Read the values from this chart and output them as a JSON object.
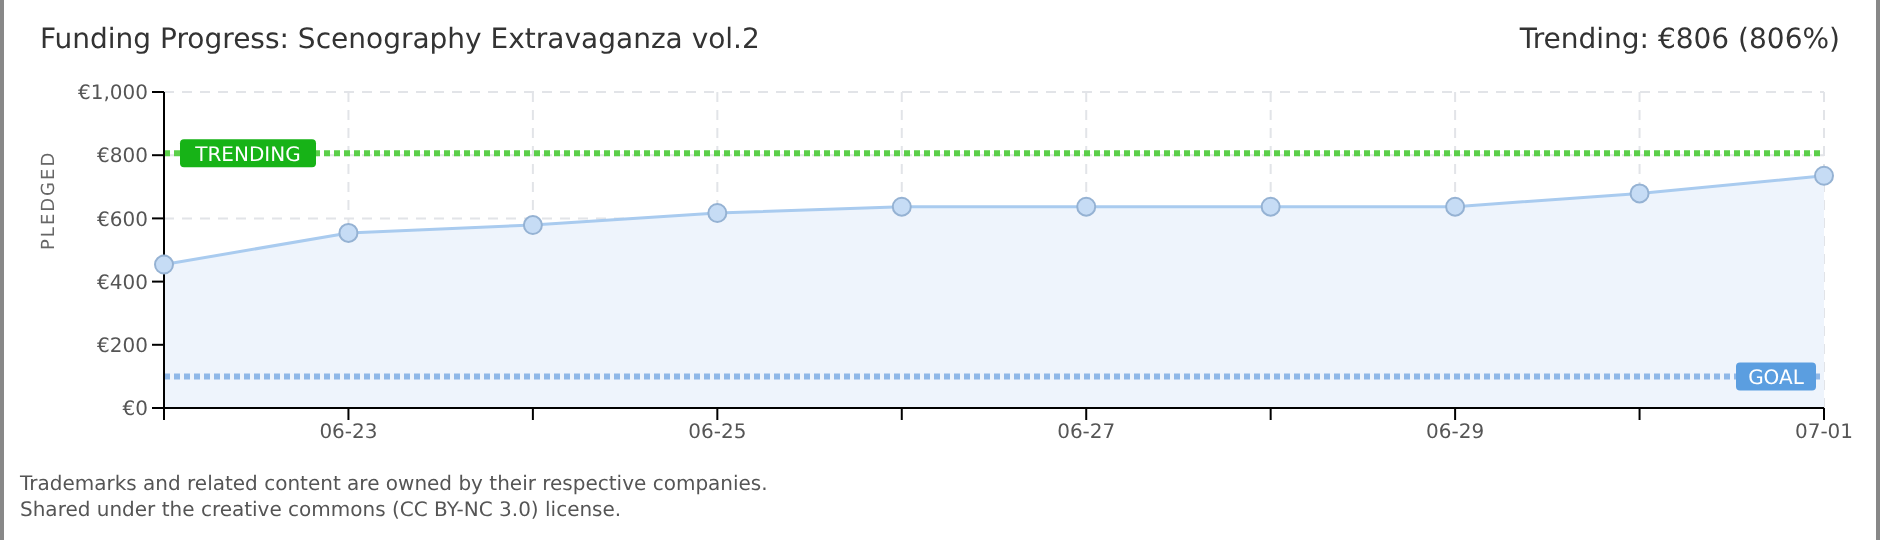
{
  "chart_data": {
    "type": "area",
    "title": "Funding Progress: Scenography Extravaganza vol.2",
    "subtitle": "Trending:  €806 (806%)",
    "ylabel": "PLEDGED",
    "categories": [
      null,
      "06-23",
      null,
      "06-25",
      null,
      "06-27",
      null,
      "06-29",
      null,
      "07-01"
    ],
    "series": [
      {
        "color": "#a9cbef",
        "values": [
          454,
          554,
          579,
          617,
          637,
          637,
          637,
          637,
          679,
          735
        ]
      }
    ],
    "ylim": [
      0,
      1000
    ],
    "yticks": [
      {
        "value": 0,
        "label": "€0"
      },
      {
        "value": 200,
        "label": "€200"
      },
      {
        "value": 400,
        "label": "€400"
      },
      {
        "value": 600,
        "label": "€600"
      },
      {
        "value": 800,
        "label": "€800"
      },
      {
        "value": 1000,
        "label": "€1,000"
      }
    ],
    "ref_lines": [
      {
        "axis": "y",
        "value": 806,
        "label": "TRENDING",
        "color": "#5ccf4a",
        "line_style": "dotted"
      },
      {
        "axis": "y",
        "value": 100,
        "label": "GOAL",
        "color": "#8fb8e8",
        "line_style": "dotted"
      }
    ],
    "grid": true,
    "marker": "circle",
    "annotations": [
      "Trademarks and related content are owned by their respective companies.",
      "Shared under the creative commons (CC BY-NC 3.0) license."
    ]
  }
}
